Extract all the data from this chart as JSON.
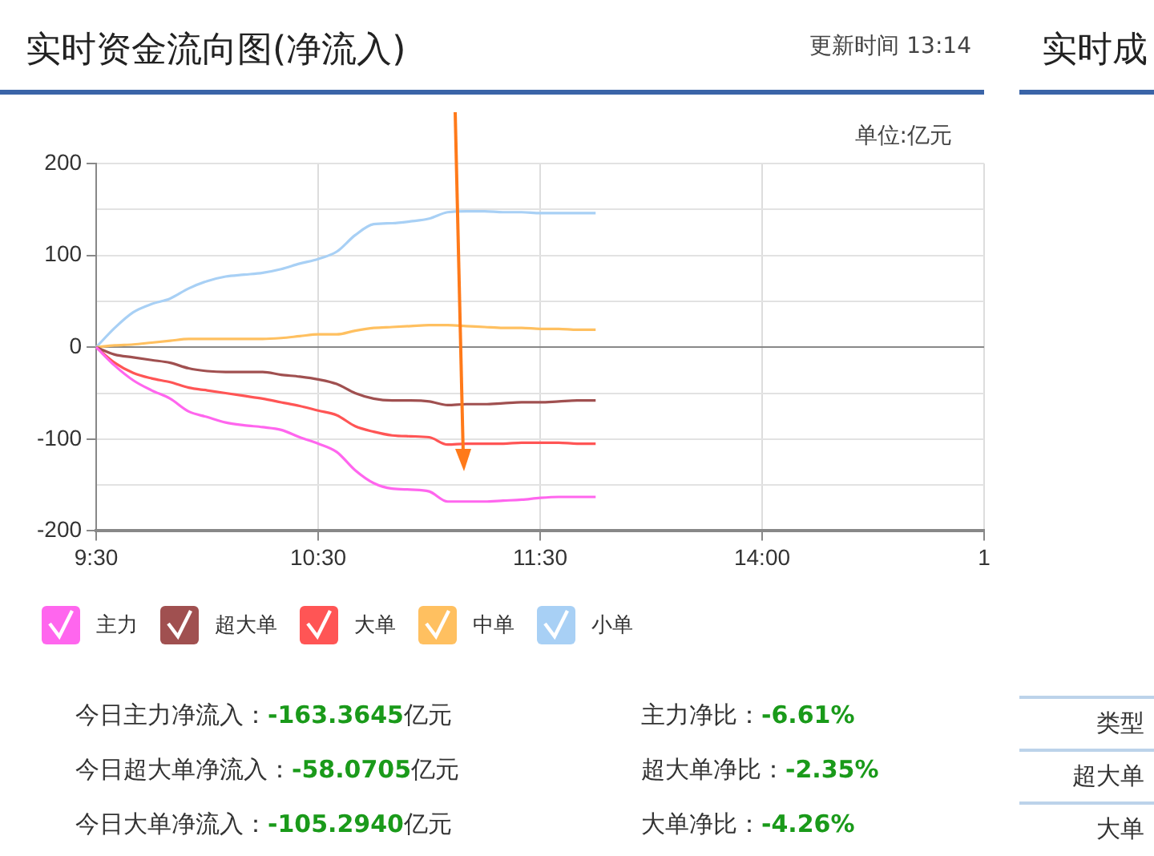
{
  "chart_data": [
    {
      "type": "line",
      "title": "实时资金流向图(净流入)",
      "subtitle": "更新时间 13:14",
      "ylabel": "单位:亿元",
      "categories": [
        "9:30",
        null,
        null,
        null,
        null,
        null,
        null,
        null,
        null,
        null,
        null,
        null,
        "10:30",
        null,
        null,
        null,
        null,
        null,
        null,
        null,
        null,
        null,
        null,
        null,
        "11:30",
        null,
        null,
        null,
        null,
        null,
        null,
        null,
        null,
        null,
        null,
        null,
        "14:00",
        null,
        null,
        null,
        null,
        null,
        null,
        null,
        null,
        null,
        null,
        null,
        "1"
      ],
      "ylim": [
        -200,
        200
      ],
      "yticks": [
        -200,
        {
          "value": -150,
          "label": null
        },
        -100,
        {
          "value": -50,
          "label": null
        },
        0,
        {
          "value": 50,
          "label": null
        },
        100,
        {
          "value": 150,
          "label": null
        },
        200
      ],
      "grid": true,
      "legend": "bottom",
      "series": [
        {
          "name": "主力",
          "color": "#ff66ee",
          "values": [
            0,
            -20,
            -36,
            -47,
            -56,
            -70,
            -76,
            -82,
            -85,
            -87,
            -90,
            -98,
            -105,
            -114,
            -134,
            -148,
            -154,
            -155,
            -157,
            -168,
            -168,
            -168,
            -167,
            -166,
            -164,
            -163,
            -163,
            -163,
            null,
            null,
            null,
            null,
            null,
            null,
            null,
            null,
            null,
            null,
            null,
            null,
            null,
            null,
            null,
            null,
            null,
            null,
            null,
            null,
            null
          ]
        },
        {
          "name": "超大单",
          "color": "#a05050",
          "values": [
            0,
            -8,
            -11,
            -14,
            -17,
            -23,
            -26,
            -27,
            -27,
            -27,
            -30,
            -32,
            -35,
            -40,
            -50,
            -56,
            -58,
            -58,
            -59,
            -63,
            -62,
            -62,
            -61,
            -60,
            -60,
            -59,
            -58,
            -58,
            null,
            null,
            null,
            null,
            null,
            null,
            null,
            null,
            null,
            null,
            null,
            null,
            null,
            null,
            null,
            null,
            null,
            null,
            null,
            null,
            null
          ]
        },
        {
          "name": "大单",
          "color": "#ff5555",
          "values": [
            0,
            -17,
            -28,
            -34,
            -38,
            -44,
            -47,
            -50,
            -53,
            -56,
            -60,
            -64,
            -69,
            -74,
            -86,
            -92,
            -96,
            -97,
            -98,
            -106,
            -105,
            -105,
            -105,
            -104,
            -104,
            -104,
            -105,
            -105,
            null,
            null,
            null,
            null,
            null,
            null,
            null,
            null,
            null,
            null,
            null,
            null,
            null,
            null,
            null,
            null,
            null,
            null,
            null,
            null,
            null
          ]
        },
        {
          "name": "中单",
          "color": "#ffc060",
          "values": [
            0,
            2,
            3,
            5,
            7,
            9,
            9,
            9,
            9,
            9,
            10,
            12,
            14,
            14,
            18,
            21,
            22,
            23,
            24,
            24,
            23,
            22,
            21,
            21,
            20,
            20,
            19,
            19,
            null,
            null,
            null,
            null,
            null,
            null,
            null,
            null,
            null,
            null,
            null,
            null,
            null,
            null,
            null,
            null,
            null,
            null,
            null,
            null,
            null
          ]
        },
        {
          "name": "小单",
          "color": "#a8d0f5",
          "values": [
            0,
            21,
            38,
            47,
            53,
            64,
            72,
            77,
            79,
            81,
            85,
            91,
            96,
            104,
            122,
            134,
            135,
            137,
            140,
            147,
            148,
            148,
            147,
            147,
            146,
            146,
            146,
            146,
            null,
            null,
            null,
            null,
            null,
            null,
            null,
            null,
            null,
            null,
            null,
            null,
            null,
            null,
            null,
            null,
            null,
            null,
            null,
            null,
            null
          ]
        }
      ],
      "annotations": [
        "今日主力净流入：-163.3645亿元",
        "主力净比：-6.61%",
        "今日超大单净流入：-58.0705亿元",
        "超大单净比：-2.35%",
        "今日大单净流入：-105.2940亿元",
        "大单净比：-4.26%"
      ]
    },
    {
      "type": "other",
      "title": "实时成",
      "annotations": [
        "类型",
        "超大单",
        "大单"
      ]
    }
  ]
}
